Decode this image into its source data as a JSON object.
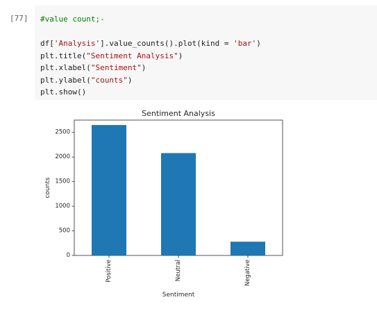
{
  "cell": {
    "prompt": "[77]",
    "code_lines": [
      [
        {
          "t": "#value count;-",
          "c": "comment"
        }
      ],
      [],
      [
        {
          "t": "df[",
          "c": ""
        },
        {
          "t": "'Analysis'",
          "c": "str"
        },
        {
          "t": "].value_counts().plot(kind = ",
          "c": ""
        },
        {
          "t": "'bar'",
          "c": "str"
        },
        {
          "t": ")",
          "c": ""
        }
      ],
      [
        {
          "t": "plt.title(",
          "c": ""
        },
        {
          "t": "\"Sentiment Analysis\"",
          "c": "str"
        },
        {
          "t": ")",
          "c": ""
        }
      ],
      [
        {
          "t": "plt.xlabel(",
          "c": ""
        },
        {
          "t": "\"Sentiment\"",
          "c": "str"
        },
        {
          "t": ")",
          "c": ""
        }
      ],
      [
        {
          "t": "plt.ylabel(",
          "c": ""
        },
        {
          "t": "\"counts\"",
          "c": "str"
        },
        {
          "t": ")",
          "c": ""
        }
      ],
      [
        {
          "t": "plt.show()",
          "c": ""
        }
      ]
    ]
  },
  "colors": {
    "bar": "#1f77b4",
    "cell_background": "#f7f7f7"
  },
  "chart_data": {
    "type": "bar",
    "title": "Sentiment Analysis",
    "xlabel": "Sentiment",
    "ylabel": "counts",
    "categories": [
      "Positive",
      "Neutral",
      "Negative"
    ],
    "values": [
      2650,
      2080,
      280
    ],
    "ylim": [
      0,
      2750
    ],
    "yticks": [
      0,
      500,
      1000,
      1500,
      2000,
      2500
    ],
    "grid": false,
    "legend": false
  }
}
